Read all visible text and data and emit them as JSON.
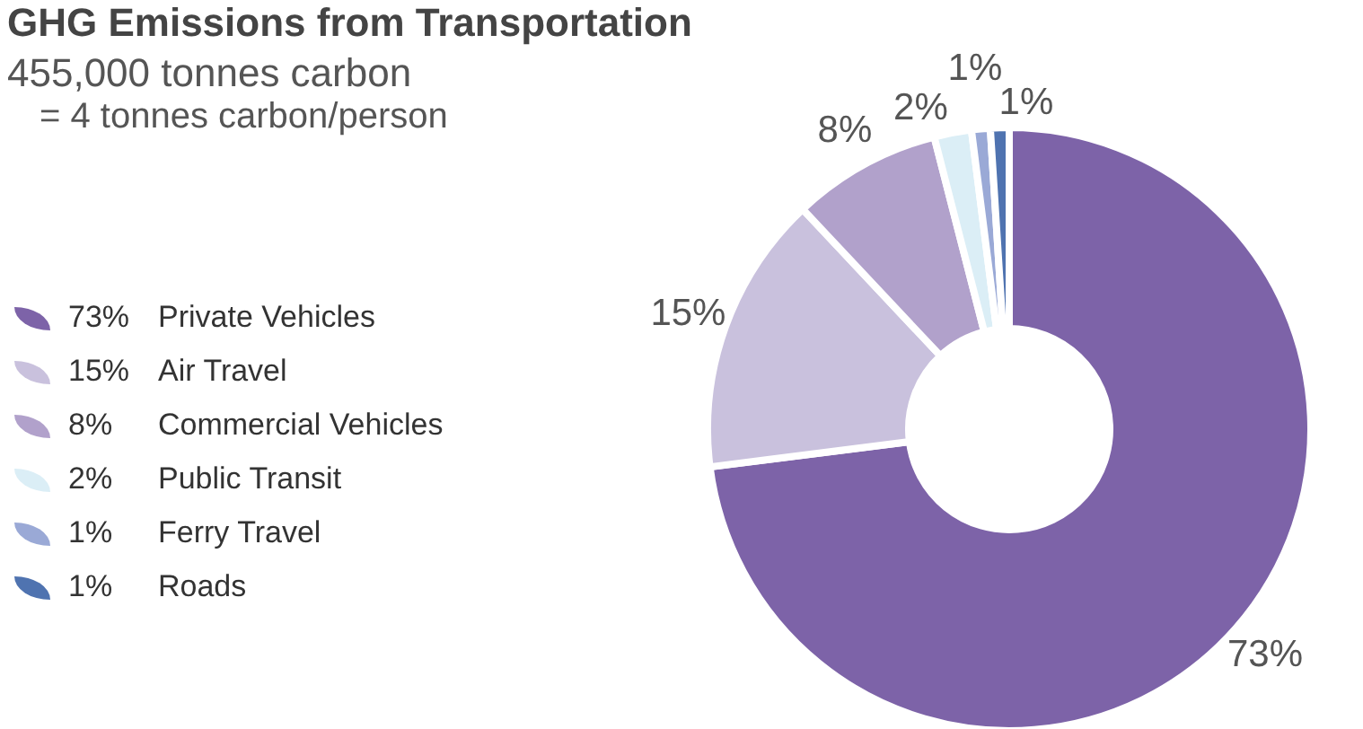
{
  "chart_data": {
    "type": "donut",
    "title": "GHG Emissions from Transportation",
    "subtitle": "455,000 tonnes carbon",
    "annotations": [
      "= 4 tonnes carbon/person"
    ],
    "categories": [
      "Private Vehicles",
      "Air Travel",
      "Commercial Vehicles",
      "Public Transit",
      "Ferry Travel",
      "Roads"
    ],
    "values": [
      73,
      15,
      8,
      2,
      1,
      1
    ],
    "value_labels": [
      "73%",
      "15%",
      "8%",
      "2%",
      "1%",
      "1%"
    ],
    "colors": [
      "#7d63a8",
      "#c9c1dd",
      "#b1a1cb",
      "#dbeef6",
      "#9aa9d6",
      "#4f73b0"
    ],
    "legend": "left"
  }
}
